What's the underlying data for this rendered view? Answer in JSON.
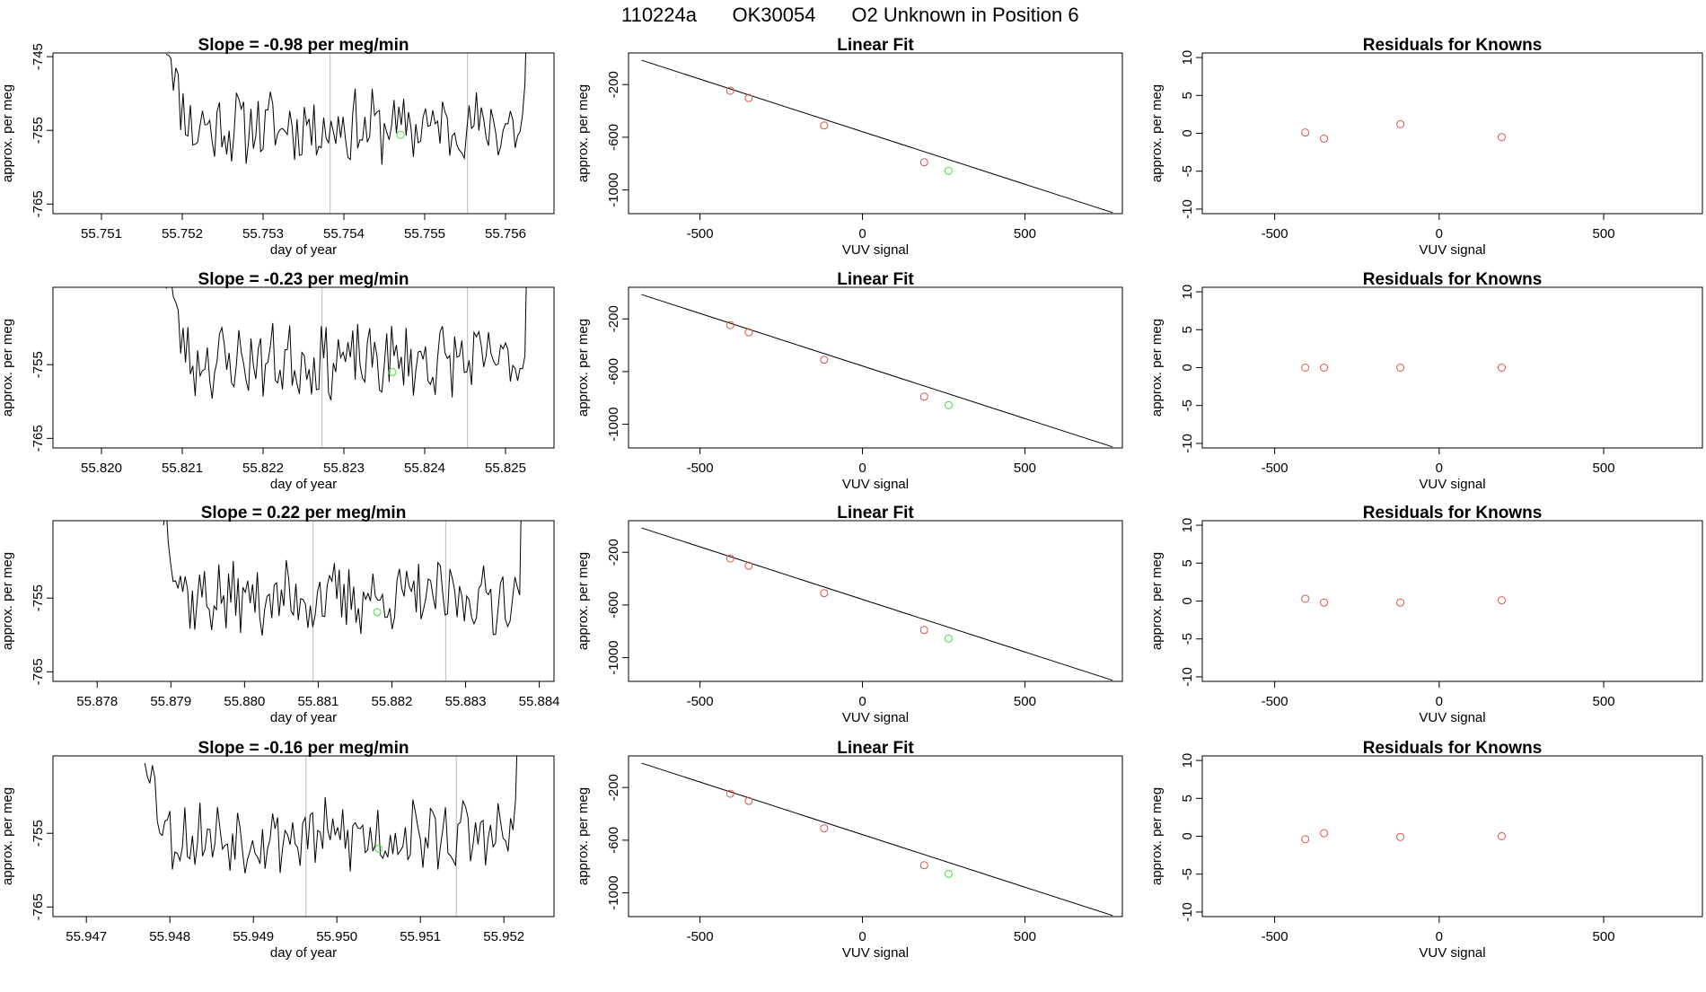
{
  "header": {
    "sample_id": "110224a",
    "tank_id": "OK30054",
    "description": "O2 Unknown in Position  6"
  },
  "colors": {
    "known": "#d9534f",
    "unknown": "#44dd44",
    "line": "#000000",
    "guide": "#bbbbbb"
  },
  "chart_data": [
    {
      "row": 0,
      "time_panel": {
        "type": "line",
        "title_prefix": "Slope = ",
        "slope": "-0.98",
        "title_suffix": " per meg/min",
        "xlabel": "day of year",
        "ylabel": "approx. per meg",
        "xlim": [
          55.7504,
          55.7566
        ],
        "ylim": [
          -766.3,
          -744.5
        ],
        "xticks": [
          "55.751",
          "55.752",
          "55.753",
          "55.754",
          "55.755",
          "55.756"
        ],
        "yticks": [
          "-745",
          "-755",
          "-765"
        ],
        "series_start": 55.7518,
        "series_end": 55.7563,
        "vlines": [
          55.75383,
          55.75553
        ],
        "unknown_point": [
          55.7547,
          -755.6
        ],
        "mean": -754.5,
        "noise_seed": 11
      },
      "fit_panel": {
        "type": "scatter",
        "title": "Linear Fit",
        "xlabel": "VUV signal",
        "ylabel": "approx. per meg",
        "xlim": [
          -720,
          800
        ],
        "ylim": [
          -1180,
          40
        ],
        "xticks": [
          "-500",
          "0",
          "500"
        ],
        "yticks": [
          "-200",
          "-600",
          "-1000"
        ],
        "line": {
          "x": [
            -680,
            770
          ],
          "y": [
            -15,
            -1172
          ]
        },
        "knowns": {
          "x": [
            -407,
            -350,
            -118,
            190
          ],
          "y": [
            -247,
            -302,
            -510,
            -790
          ]
        },
        "unknown": {
          "x": [
            265
          ],
          "y": [
            -855
          ]
        }
      },
      "resid_panel": {
        "type": "scatter",
        "title": "Residuals for Knowns",
        "xlabel": "VUV signal",
        "ylabel": "approx. per meg",
        "xlim": [
          -720,
          800
        ],
        "ylim": [
          -10.6,
          10.6
        ],
        "xticks": [
          "-500",
          "0",
          "500"
        ],
        "yticks": [
          "10",
          "5",
          "0",
          "-5",
          "-10"
        ],
        "knowns": {
          "x": [
            -407,
            -350,
            -118,
            190
          ],
          "y": [
            0.1,
            -0.7,
            1.2,
            -0.5
          ]
        }
      }
    },
    {
      "row": 1,
      "time_panel": {
        "type": "line",
        "title_prefix": "Slope = ",
        "slope": "-0.23",
        "title_suffix": " per meg/min",
        "xlabel": "day of year",
        "ylabel": "approx. per meg",
        "xlim": [
          55.8194,
          55.8256
        ],
        "ylim": [
          -766.3,
          -744.5
        ],
        "xticks": [
          "55.820",
          "55.821",
          "55.822",
          "55.823",
          "55.824",
          "55.825"
        ],
        "yticks": [
          "-755",
          "-765"
        ],
        "series_start": 55.8208,
        "series_end": 55.8253,
        "vlines": [
          55.82273,
          55.82453
        ],
        "unknown_point": [
          55.8236,
          -756.0
        ],
        "mean": -754.5,
        "noise_seed": 23
      },
      "fit_panel": {
        "type": "scatter",
        "title": "Linear Fit",
        "xlabel": "VUV signal",
        "ylabel": "approx. per meg",
        "xlim": [
          -720,
          800
        ],
        "ylim": [
          -1180,
          40
        ],
        "xticks": [
          "-500",
          "0",
          "500"
        ],
        "yticks": [
          "-200",
          "-600",
          "-1000"
        ],
        "line": {
          "x": [
            -680,
            770
          ],
          "y": [
            -15,
            -1172
          ]
        },
        "knowns": {
          "x": [
            -407,
            -350,
            -118,
            190
          ],
          "y": [
            -247,
            -302,
            -510,
            -790
          ]
        },
        "unknown": {
          "x": [
            265
          ],
          "y": [
            -855
          ]
        }
      },
      "resid_panel": {
        "type": "scatter",
        "title": "Residuals for Knowns",
        "xlabel": "VUV signal",
        "ylabel": "approx. per meg",
        "xlim": [
          -720,
          800
        ],
        "ylim": [
          -10.6,
          10.6
        ],
        "xticks": [
          "-500",
          "0",
          "500"
        ],
        "yticks": [
          "10",
          "5",
          "0",
          "-5",
          "-10"
        ],
        "knowns": {
          "x": [
            -407,
            -350,
            -118,
            190
          ],
          "y": [
            0.0,
            0.0,
            0.0,
            0.0
          ]
        }
      }
    },
    {
      "row": 2,
      "time_panel": {
        "type": "line",
        "title_prefix": "Slope = ",
        "slope": "0.22",
        "title_suffix": " per meg/min",
        "xlabel": "day of year",
        "ylabel": "approx. per meg",
        "xlim": [
          55.8774,
          55.8842
        ],
        "ylim": [
          -766.3,
          -744.5
        ],
        "xticks": [
          "55.878",
          "55.879",
          "55.880",
          "55.881",
          "55.882",
          "55.883",
          "55.884"
        ],
        "yticks": [
          "-755",
          "-765"
        ],
        "series_start": 55.8789,
        "series_end": 55.8838,
        "vlines": [
          55.88093,
          55.88273
        ],
        "unknown_point": [
          55.8818,
          -756.9
        ],
        "mean": -755.0,
        "noise_seed": 37
      },
      "fit_panel": {
        "type": "scatter",
        "title": "Linear Fit",
        "xlabel": "VUV signal",
        "ylabel": "approx. per meg",
        "xlim": [
          -720,
          800
        ],
        "ylim": [
          -1180,
          40
        ],
        "xticks": [
          "-500",
          "0",
          "500"
        ],
        "yticks": [
          "-200",
          "-600",
          "-1000"
        ],
        "line": {
          "x": [
            -680,
            770
          ],
          "y": [
            -15,
            -1172
          ]
        },
        "knowns": {
          "x": [
            -407,
            -350,
            -118,
            190
          ],
          "y": [
            -247,
            -302,
            -510,
            -790
          ]
        },
        "unknown": {
          "x": [
            265
          ],
          "y": [
            -855
          ]
        }
      },
      "resid_panel": {
        "type": "scatter",
        "title": "Residuals for Knowns",
        "xlabel": "VUV signal",
        "ylabel": "approx. per meg",
        "xlim": [
          -720,
          800
        ],
        "ylim": [
          -10.6,
          10.6
        ],
        "xticks": [
          "-500",
          "0",
          "500"
        ],
        "yticks": [
          "10",
          "5",
          "0",
          "-5",
          "-10"
        ],
        "knowns": {
          "x": [
            -407,
            -350,
            -118,
            190
          ],
          "y": [
            0.3,
            -0.2,
            -0.2,
            0.1
          ]
        }
      }
    },
    {
      "row": 3,
      "time_panel": {
        "type": "line",
        "title_prefix": "Slope = ",
        "slope": "-0.16",
        "title_suffix": " per meg/min",
        "xlabel": "day of year",
        "ylabel": "approx. per meg",
        "xlim": [
          55.9466,
          55.9526
        ],
        "ylim": [
          -766.3,
          -744.5
        ],
        "xticks": [
          "55.947",
          "55.948",
          "55.949",
          "55.950",
          "55.951",
          "55.952"
        ],
        "yticks": [
          "-755",
          "-765"
        ],
        "series_start": 55.9477,
        "series_end": 55.9522,
        "vlines": [
          55.94963,
          55.95143
        ],
        "unknown_point": [
          55.9505,
          -757.1
        ],
        "mean": -755.4,
        "noise_seed": 53
      },
      "fit_panel": {
        "type": "scatter",
        "title": "Linear Fit",
        "xlabel": "VUV signal",
        "ylabel": "approx. per meg",
        "xlim": [
          -720,
          800
        ],
        "ylim": [
          -1180,
          40
        ],
        "xticks": [
          "-500",
          "0",
          "500"
        ],
        "yticks": [
          "-200",
          "-600",
          "-1000"
        ],
        "line": {
          "x": [
            -680,
            770
          ],
          "y": [
            -15,
            -1172
          ]
        },
        "knowns": {
          "x": [
            -407,
            -350,
            -118,
            190
          ],
          "y": [
            -247,
            -302,
            -510,
            -790
          ]
        },
        "unknown": {
          "x": [
            265
          ],
          "y": [
            -855
          ]
        }
      },
      "resid_panel": {
        "type": "scatter",
        "title": "Residuals for Knowns",
        "xlabel": "VUV signal",
        "ylabel": "approx. per meg",
        "xlim": [
          -720,
          800
        ],
        "ylim": [
          -10.6,
          10.6
        ],
        "xticks": [
          "-500",
          "0",
          "500"
        ],
        "yticks": [
          "10",
          "5",
          "0",
          "-5",
          "-10"
        ],
        "knowns": {
          "x": [
            -407,
            -350,
            -118,
            190
          ],
          "y": [
            -0.4,
            0.4,
            -0.1,
            0.0
          ]
        }
      }
    }
  ]
}
